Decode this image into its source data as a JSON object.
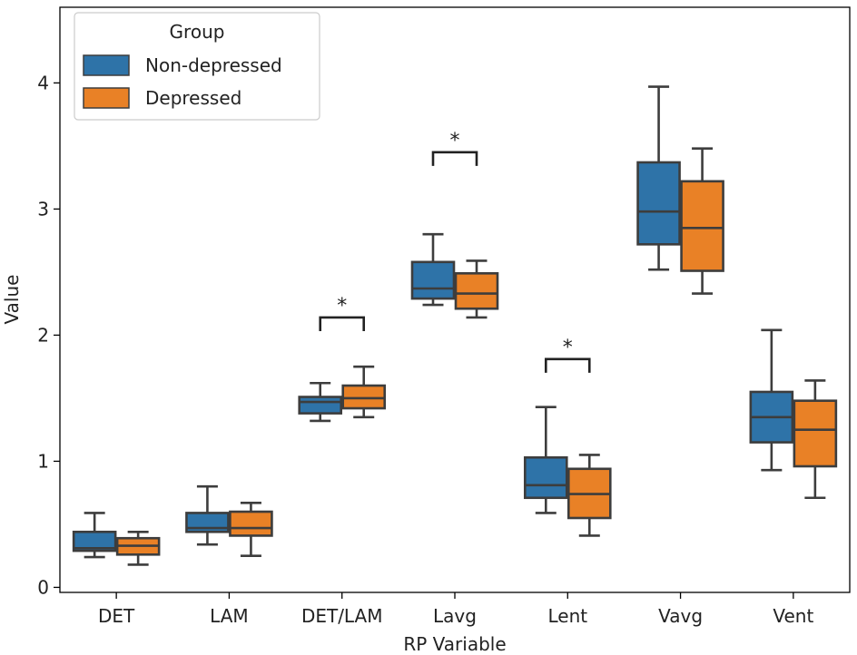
{
  "chart_data": {
    "type": "box",
    "xlabel": "RP Variable",
    "ylabel": "Value",
    "ylim": [
      -0.04,
      4.6
    ],
    "yticks": [
      0,
      1,
      2,
      3,
      4
    ],
    "categories": [
      "DET",
      "LAM",
      "DET/LAM",
      "Lavg",
      "Lent",
      "Vavg",
      "Vent"
    ],
    "legend": {
      "title": "Group",
      "placement": "top-left",
      "entries": [
        "Non-depressed",
        "Depressed"
      ]
    },
    "series": [
      {
        "name": "Non-depressed",
        "color": "#2E73A8",
        "boxes": [
          {
            "min": 0.24,
            "q1": 0.29,
            "median": 0.31,
            "q3": 0.44,
            "max": 0.59
          },
          {
            "min": 0.34,
            "q1": 0.44,
            "median": 0.47,
            "q3": 0.59,
            "max": 0.8
          },
          {
            "min": 1.32,
            "q1": 1.38,
            "median": 1.47,
            "q3": 1.51,
            "max": 1.62
          },
          {
            "min": 2.24,
            "q1": 2.29,
            "median": 2.37,
            "q3": 2.58,
            "max": 2.8
          },
          {
            "min": 0.59,
            "q1": 0.71,
            "median": 0.81,
            "q3": 1.03,
            "max": 1.43
          },
          {
            "min": 2.52,
            "q1": 2.72,
            "median": 2.98,
            "q3": 3.37,
            "max": 3.97
          },
          {
            "min": 0.93,
            "q1": 1.15,
            "median": 1.35,
            "q3": 1.55,
            "max": 2.04
          }
        ]
      },
      {
        "name": "Depressed",
        "color": "#E98126",
        "boxes": [
          {
            "min": 0.18,
            "q1": 0.26,
            "median": 0.33,
            "q3": 0.39,
            "max": 0.44
          },
          {
            "min": 0.25,
            "q1": 0.41,
            "median": 0.47,
            "q3": 0.6,
            "max": 0.67
          },
          {
            "min": 1.35,
            "q1": 1.42,
            "median": 1.5,
            "q3": 1.6,
            "max": 1.75
          },
          {
            "min": 2.14,
            "q1": 2.21,
            "median": 2.33,
            "q3": 2.49,
            "max": 2.59
          },
          {
            "min": 0.41,
            "q1": 0.55,
            "median": 0.74,
            "q3": 0.94,
            "max": 1.05
          },
          {
            "min": 2.33,
            "q1": 2.51,
            "median": 2.85,
            "q3": 3.22,
            "max": 3.48
          },
          {
            "min": 0.71,
            "q1": 0.96,
            "median": 1.25,
            "q3": 1.48,
            "max": 1.64
          }
        ]
      }
    ],
    "significance": [
      {
        "category": "DET/LAM",
        "label": "*",
        "bracket_y": 2.14
      },
      {
        "category": "Lavg",
        "label": "*",
        "bracket_y": 3.45
      },
      {
        "category": "Lent",
        "label": "*",
        "bracket_y": 1.81
      }
    ]
  }
}
